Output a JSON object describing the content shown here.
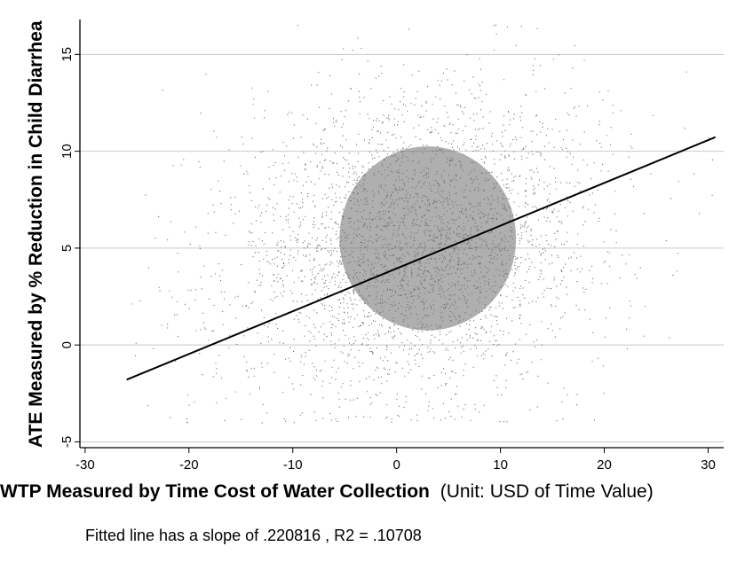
{
  "chart_data": {
    "type": "scatter",
    "title": "",
    "xlabel_bold": "WTP Measured by Time Cost of Water Collection",
    "xlabel_rest": "(Unit: USD of Time Value)",
    "ylabel": "ATE Measured by % Reduction in Child Diarrhea",
    "xlim": [
      -30.5,
      31.5
    ],
    "ylim": [
      -5.3,
      16.8
    ],
    "x_ticks": [
      -30,
      -20,
      -10,
      0,
      10,
      20,
      30
    ],
    "y_ticks": [
      -5,
      0,
      5,
      10,
      15
    ],
    "grid": true,
    "point_color": "#6e6e6e",
    "line_color": "#000000",
    "fitted_line": {
      "slope": 0.220816,
      "intercept": 3.95,
      "x_range": [
        -26,
        30.7
      ]
    },
    "scatter_cloud": {
      "description_of_density": [
        {
          "x": 2,
          "y": 5,
          "sx": 7.5,
          "sy": 3.6,
          "weight": 0.82
        },
        {
          "x": 8,
          "y": 8,
          "sx": 9,
          "sy": 3.5,
          "weight": 0.1
        },
        {
          "x": -12,
          "y": 3,
          "sx": 8,
          "sy": 4,
          "weight": 0.08
        }
      ],
      "y_clip": [
        -4,
        16.6
      ],
      "x_clip": [
        -26,
        31
      ]
    }
  },
  "note": "Fitted line has a slope of .220816 , R2 = .10708"
}
